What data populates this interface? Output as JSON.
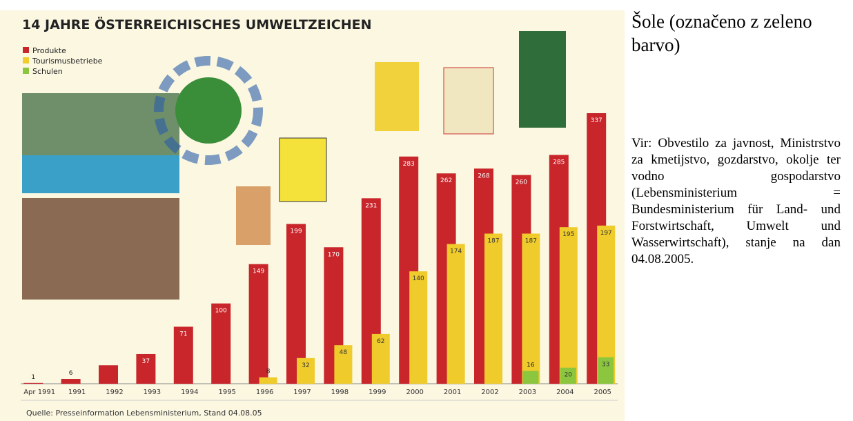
{
  "chart_data": {
    "type": "bar",
    "title": "14 JAHRE ÖSTERREICHISCHES UMWELTZEICHEN",
    "source": "Quelle: Presseinformation Lebensministerium, Stand 04.08.05",
    "categories": [
      "Apr 1991",
      "1991",
      "1992",
      "1993",
      "1994",
      "1995",
      "1996",
      "1997",
      "1998",
      "1999",
      "2000",
      "2001",
      "2002",
      "2003",
      "2004",
      "2005"
    ],
    "series": [
      {
        "name": "Produkte",
        "color": "#c8262b",
        "values": [
          1,
          6,
          23,
          37,
          71,
          100,
          149,
          199,
          170,
          231,
          283,
          262,
          268,
          260,
          285,
          337
        ],
        "value_labels": [
          "1",
          "6",
          null,
          "37",
          "71",
          "100",
          "149",
          "199",
          "170",
          "231",
          "283",
          "262",
          "268",
          "260",
          "285",
          "337"
        ]
      },
      {
        "name": "Tourismusbetriebe",
        "color": "#efcb2c",
        "values": [
          null,
          null,
          null,
          null,
          null,
          null,
          8,
          32,
          48,
          62,
          140,
          174,
          187,
          187,
          195,
          197
        ],
        "value_labels": [
          null,
          null,
          null,
          null,
          null,
          null,
          "8",
          "32",
          "48",
          "62",
          "140",
          "174",
          "187",
          "187",
          "195",
          "197"
        ]
      },
      {
        "name": "Schulen",
        "color": "#8cc63e",
        "values": [
          null,
          null,
          null,
          null,
          null,
          null,
          null,
          null,
          null,
          null,
          null,
          null,
          null,
          16,
          20,
          33
        ],
        "value_labels": [
          null,
          null,
          null,
          null,
          null,
          null,
          null,
          null,
          null,
          null,
          null,
          null,
          null,
          "16",
          "20",
          "33"
        ]
      }
    ]
  },
  "side": {
    "heading": "Šole (označeno z zeleno barvo)",
    "note": "Vir: Obvestilo za javnost, Ministrstvo za kmetijstvo, gozdarstvo, okolje ter vodno gospodarstvo (Lebensministerium = Bundesministerium für Land- und Forstwirtschaft, Umwelt und Wasserwirtschaft), stanje na dan 04.08.2005."
  }
}
